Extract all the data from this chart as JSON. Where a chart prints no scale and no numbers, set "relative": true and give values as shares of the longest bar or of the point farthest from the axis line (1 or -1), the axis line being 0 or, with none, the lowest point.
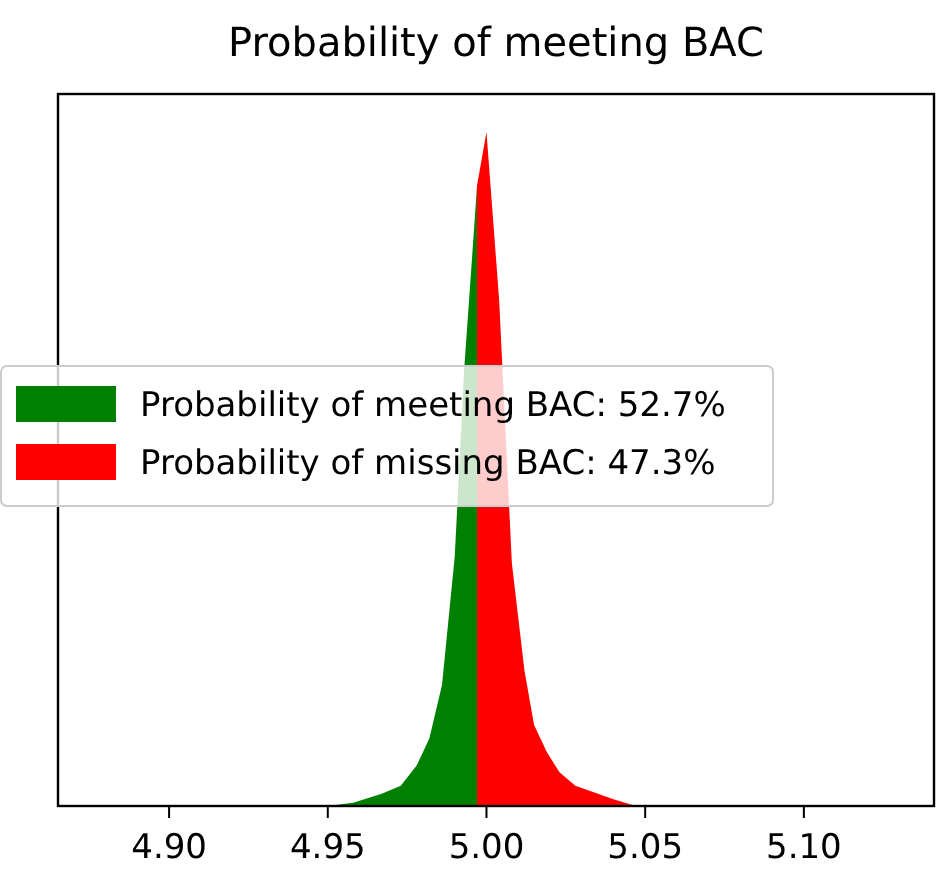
{
  "chart_data": {
    "type": "area",
    "title": "Probability of meeting BAC",
    "relative": true,
    "xlim": [
      4.865,
      5.141
    ],
    "xticks": [
      {
        "value": 4.9,
        "label": "4.90"
      },
      {
        "value": 4.95,
        "label": "4.95"
      },
      {
        "value": 5.0,
        "label": "5.00"
      },
      {
        "value": 5.05,
        "label": "5.05"
      },
      {
        "value": 5.1,
        "label": "5.10"
      }
    ],
    "legend": "left",
    "series": [
      {
        "name": "Probability of meeting BAC: 52.7%",
        "color": "#008000",
        "x": [
          4.95,
          4.958,
          4.967,
          4.973,
          4.978,
          4.982,
          4.986,
          4.99,
          4.993,
          4.996,
          4.997
        ],
        "values": [
          0,
          0.005,
          0.018,
          0.03,
          0.06,
          0.1,
          0.18,
          0.37,
          0.65,
          0.85,
          0.92
        ]
      },
      {
        "name": "Probability of missing BAC: 47.3%",
        "color": "#ff0000",
        "x": [
          4.997,
          5.0,
          5.004,
          5.008,
          5.012,
          5.015,
          5.019,
          5.023,
          5.028,
          5.034,
          5.04,
          5.047
        ],
        "values": [
          0.92,
          1,
          0.75,
          0.36,
          0.2,
          0.12,
          0.08,
          0.05,
          0.03,
          0.02,
          0.01,
          0
        ]
      }
    ]
  }
}
